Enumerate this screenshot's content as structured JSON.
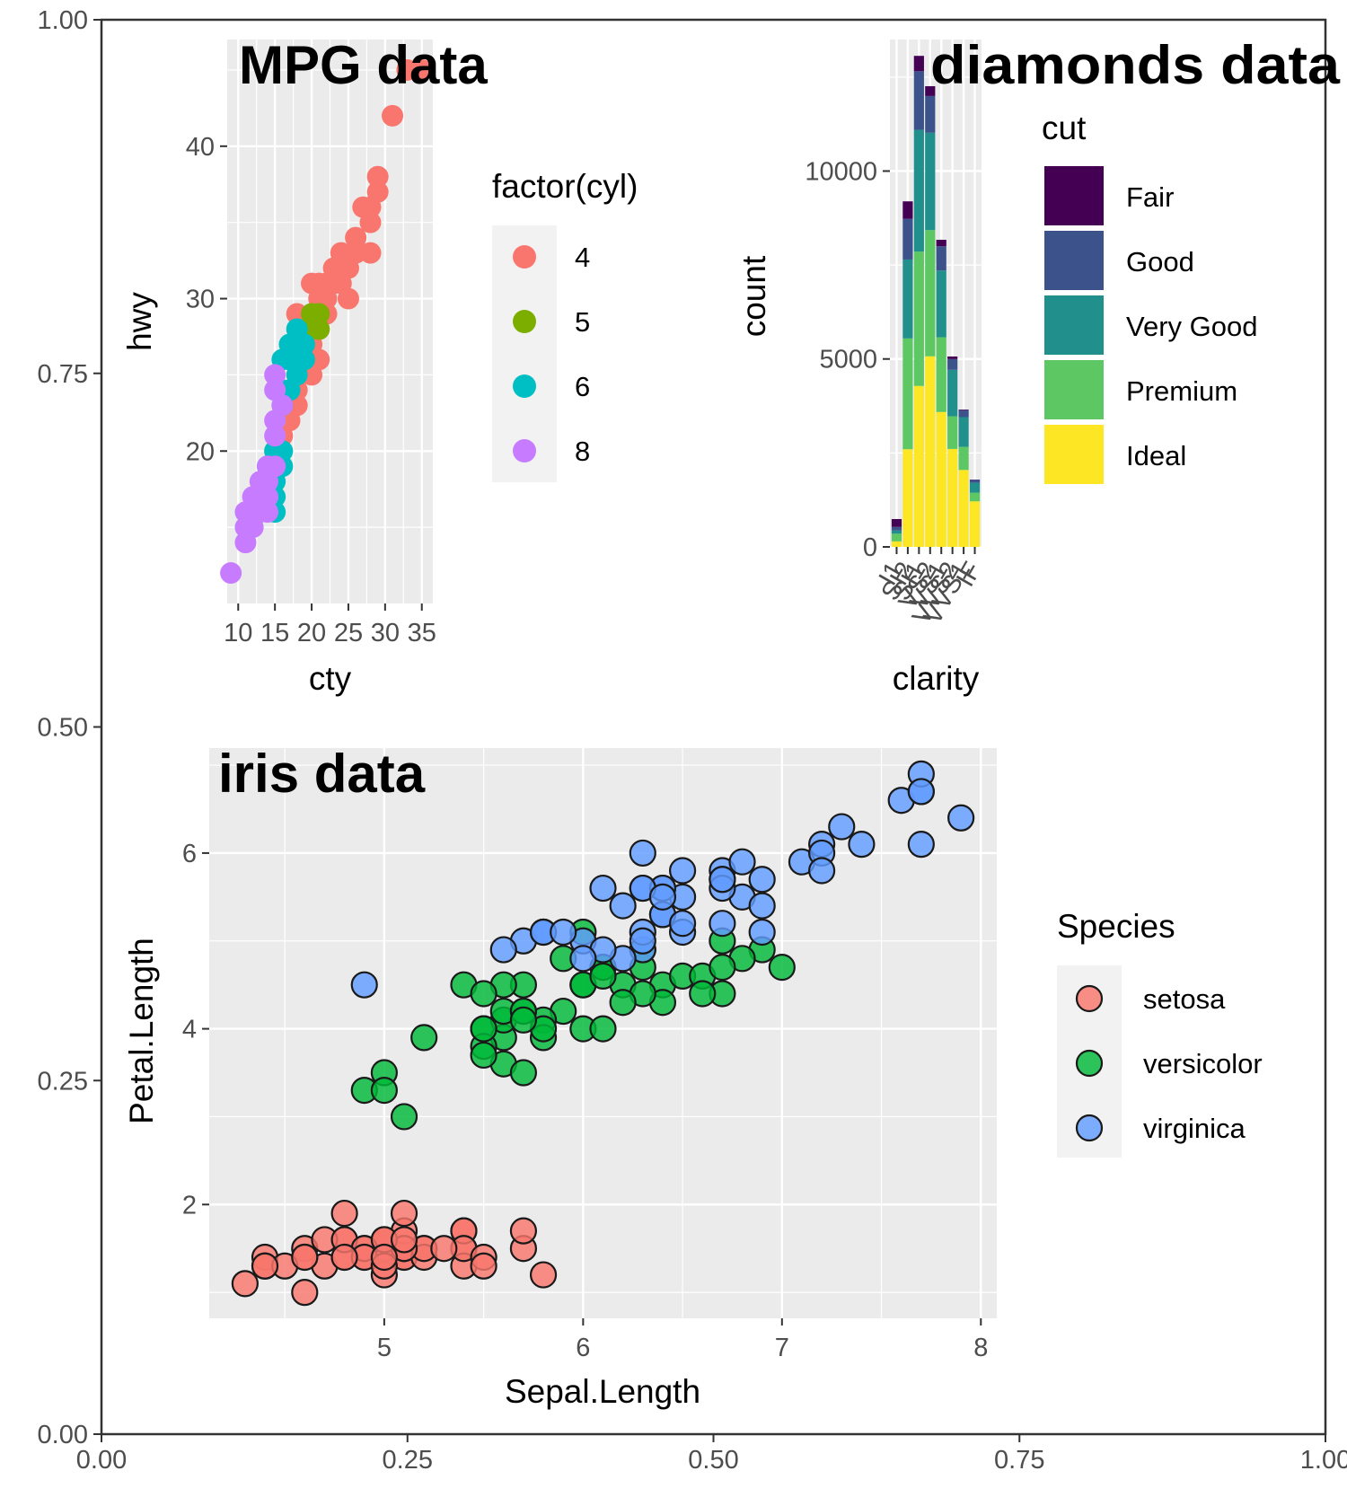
{
  "chart_data": [
    {
      "type": "canvas",
      "xlim": [
        0,
        1
      ],
      "ylim": [
        0,
        1
      ],
      "x_ticks": [
        "0.00",
        "0.25",
        "0.50",
        "0.75",
        "1.00"
      ],
      "y_ticks": [
        "0.00",
        "0.25",
        "0.50",
        "0.75",
        "1.00"
      ],
      "grid": false
    },
    {
      "type": "scatter",
      "title": "MPG data",
      "xlabel": "cty",
      "ylabel": "hwy",
      "xlim": [
        8.5,
        36.5
      ],
      "ylim": [
        10,
        47
      ],
      "x_ticks": [
        "10",
        "15",
        "20",
        "25",
        "30",
        "35"
      ],
      "y_ticks": [
        "20",
        "30",
        "40"
      ],
      "legend": {
        "title": "factor(cyl)",
        "position": "right"
      },
      "series": [
        {
          "name": "4",
          "color": "#F8766D",
          "points": [
            [
              18,
              29
            ],
            [
              21,
              29
            ],
            [
              20,
              31
            ],
            [
              21,
              30
            ],
            [
              18,
              26
            ],
            [
              18,
              26
            ],
            [
              19,
              27
            ],
            [
              22,
              29
            ],
            [
              21,
              31
            ],
            [
              19,
              28
            ],
            [
              20,
              28
            ],
            [
              21,
              29
            ],
            [
              22,
              30
            ],
            [
              23,
              31
            ],
            [
              24,
              32
            ],
            [
              26,
              34
            ],
            [
              27,
              36
            ],
            [
              28,
              36
            ],
            [
              29,
              37
            ],
            [
              28,
              35
            ],
            [
              26,
              33
            ],
            [
              25,
              32
            ],
            [
              24,
              33
            ],
            [
              23,
              32
            ],
            [
              22,
              31
            ],
            [
              25,
              30
            ],
            [
              24,
              31
            ],
            [
              22,
              29
            ],
            [
              21,
              28
            ],
            [
              20,
              27
            ],
            [
              19,
              26
            ],
            [
              21,
              26
            ],
            [
              20,
              25
            ],
            [
              18,
              24
            ],
            [
              18,
              23
            ],
            [
              17,
              23
            ],
            [
              17,
              22
            ],
            [
              16,
              21
            ],
            [
              15,
              20
            ],
            [
              16,
              22
            ],
            [
              28,
              33
            ],
            [
              29,
              38
            ],
            [
              31,
              42
            ],
            [
              33,
              45
            ],
            [
              35,
              45
            ]
          ]
        },
        {
          "name": "5",
          "color": "#7CAE00",
          "points": [
            [
              21,
              29
            ],
            [
              20,
              28
            ],
            [
              21,
              28
            ],
            [
              20,
              29
            ]
          ]
        },
        {
          "name": "6",
          "color": "#00BFC4",
          "points": [
            [
              15,
              20
            ],
            [
              14,
              19
            ],
            [
              15,
              18
            ],
            [
              16,
              19
            ],
            [
              16,
              20
            ],
            [
              17,
              24
            ],
            [
              18,
              25
            ],
            [
              19,
              27
            ],
            [
              18,
              26
            ],
            [
              19,
              26
            ],
            [
              16,
              23
            ],
            [
              16,
              24
            ],
            [
              15,
              16
            ],
            [
              15,
              17
            ],
            [
              16,
              26
            ],
            [
              17,
              27
            ],
            [
              17,
              26
            ],
            [
              18,
              28
            ]
          ]
        },
        {
          "name": "8",
          "color": "#C77CFF",
          "points": [
            [
              9,
              12
            ],
            [
              11,
              14
            ],
            [
              11,
              15
            ],
            [
              12,
              17
            ],
            [
              12,
              16
            ],
            [
              13,
              18
            ],
            [
              13,
              17
            ],
            [
              14,
              19
            ],
            [
              14,
              18
            ],
            [
              15,
              19
            ],
            [
              14,
              17
            ],
            [
              15,
              21
            ],
            [
              15,
              22
            ],
            [
              15,
              25
            ],
            [
              16,
              23
            ],
            [
              15,
              24
            ],
            [
              14,
              16
            ],
            [
              13,
              16
            ],
            [
              12,
              15
            ],
            [
              11,
              16
            ],
            [
              12,
              16
            ]
          ]
        }
      ]
    },
    {
      "type": "bar",
      "stacked": true,
      "title": "diamonds data",
      "xlabel": "clarity",
      "ylabel": "count",
      "ylim": [
        0,
        13500
      ],
      "y_ticks": [
        "0",
        "5000",
        "10000"
      ],
      "categories": [
        "I1",
        "SI2",
        "SI1",
        "VS2",
        "VS1",
        "VVS2",
        "VVS1",
        "IF"
      ],
      "legend": {
        "title": "cut",
        "position": "right"
      },
      "series": [
        {
          "name": "Fair",
          "color": "#440154",
          "values": [
            210,
            466,
            408,
            261,
            170,
            69,
            17,
            9
          ]
        },
        {
          "name": "Good",
          "color": "#3B528B",
          "values": [
            96,
            1081,
            1560,
            978,
            648,
            286,
            186,
            71
          ]
        },
        {
          "name": "Very Good",
          "color": "#21908C",
          "values": [
            84,
            2100,
            3240,
            2591,
            1775,
            1235,
            789,
            268
          ]
        },
        {
          "name": "Premium",
          "color": "#5DC863",
          "values": [
            205,
            2949,
            3575,
            3357,
            1989,
            870,
            616,
            230
          ]
        },
        {
          "name": "Ideal",
          "color": "#FDE725",
          "values": [
            146,
            2598,
            4282,
            5071,
            3589,
            2606,
            2047,
            1212
          ]
        }
      ]
    },
    {
      "type": "scatter",
      "title": "iris data",
      "xlabel": "Sepal.Length",
      "ylabel": "Petal.Length",
      "xlim": [
        4.12,
        8.08
      ],
      "ylim": [
        0.705,
        7.195
      ],
      "x_ticks": [
        "5",
        "6",
        "7",
        "8"
      ],
      "y_ticks": [
        "2",
        "4",
        "6"
      ],
      "legend": {
        "title": "Species",
        "position": "right"
      },
      "series": [
        {
          "name": "setosa",
          "color": "#F8766D",
          "points": [
            [
              5.1,
              1.4
            ],
            [
              4.9,
              1.4
            ],
            [
              4.7,
              1.3
            ],
            [
              4.6,
              1.5
            ],
            [
              5.0,
              1.4
            ],
            [
              5.4,
              1.7
            ],
            [
              4.6,
              1.4
            ],
            [
              5.0,
              1.5
            ],
            [
              4.4,
              1.4
            ],
            [
              4.9,
              1.5
            ],
            [
              5.4,
              1.5
            ],
            [
              4.8,
              1.6
            ],
            [
              4.8,
              1.4
            ],
            [
              4.3,
              1.1
            ],
            [
              5.8,
              1.2
            ],
            [
              5.7,
              1.5
            ],
            [
              5.4,
              1.3
            ],
            [
              5.1,
              1.4
            ],
            [
              5.7,
              1.7
            ],
            [
              5.1,
              1.5
            ],
            [
              5.4,
              1.7
            ],
            [
              5.1,
              1.5
            ],
            [
              4.6,
              1.0
            ],
            [
              5.1,
              1.7
            ],
            [
              4.8,
              1.9
            ],
            [
              5.0,
              1.6
            ],
            [
              5.0,
              1.6
            ],
            [
              5.2,
              1.5
            ],
            [
              5.2,
              1.4
            ],
            [
              4.7,
              1.6
            ],
            [
              4.8,
              1.6
            ],
            [
              5.4,
              1.5
            ],
            [
              5.2,
              1.5
            ],
            [
              5.5,
              1.4
            ],
            [
              4.9,
              1.5
            ],
            [
              5.0,
              1.2
            ],
            [
              5.5,
              1.3
            ],
            [
              4.9,
              1.4
            ],
            [
              4.4,
              1.3
            ],
            [
              5.1,
              1.5
            ],
            [
              5.0,
              1.3
            ],
            [
              4.5,
              1.3
            ],
            [
              4.4,
              1.3
            ],
            [
              5.0,
              1.6
            ],
            [
              5.1,
              1.9
            ],
            [
              4.8,
              1.4
            ],
            [
              5.1,
              1.6
            ],
            [
              4.6,
              1.4
            ],
            [
              5.3,
              1.5
            ],
            [
              5.0,
              1.4
            ]
          ]
        },
        {
          "name": "versicolor",
          "color": "#00BA38",
          "points": [
            [
              7.0,
              4.7
            ],
            [
              6.4,
              4.5
            ],
            [
              6.9,
              4.9
            ],
            [
              5.5,
              4.0
            ],
            [
              6.5,
              4.6
            ],
            [
              5.7,
              4.5
            ],
            [
              6.3,
              4.7
            ],
            [
              4.9,
              3.3
            ],
            [
              6.6,
              4.6
            ],
            [
              5.2,
              3.9
            ],
            [
              5.0,
              3.5
            ],
            [
              5.9,
              4.2
            ],
            [
              6.0,
              4.0
            ],
            [
              6.1,
              4.7
            ],
            [
              5.6,
              3.6
            ],
            [
              6.7,
              4.4
            ],
            [
              5.6,
              4.5
            ],
            [
              5.8,
              4.1
            ],
            [
              6.2,
              4.5
            ],
            [
              5.6,
              3.9
            ],
            [
              5.9,
              4.8
            ],
            [
              6.1,
              4.0
            ],
            [
              6.3,
              4.9
            ],
            [
              6.1,
              4.7
            ],
            [
              6.4,
              4.3
            ],
            [
              6.6,
              4.4
            ],
            [
              6.8,
              4.8
            ],
            [
              6.7,
              5.0
            ],
            [
              6.0,
              4.5
            ],
            [
              5.7,
              3.5
            ],
            [
              5.5,
              3.8
            ],
            [
              5.5,
              3.7
            ],
            [
              5.8,
              3.9
            ],
            [
              6.0,
              5.1
            ],
            [
              5.4,
              4.5
            ],
            [
              6.0,
              4.5
            ],
            [
              6.7,
              4.7
            ],
            [
              6.3,
              4.4
            ],
            [
              5.6,
              4.1
            ],
            [
              5.5,
              4.0
            ],
            [
              5.5,
              4.4
            ],
            [
              6.1,
              4.6
            ],
            [
              5.8,
              4.0
            ],
            [
              5.0,
              3.3
            ],
            [
              5.6,
              4.2
            ],
            [
              5.7,
              4.2
            ],
            [
              5.7,
              4.2
            ],
            [
              6.2,
              4.3
            ],
            [
              5.1,
              3.0
            ],
            [
              5.7,
              4.1
            ]
          ]
        },
        {
          "name": "virginica",
          "color": "#619CFF",
          "points": [
            [
              6.3,
              6.0
            ],
            [
              5.8,
              5.1
            ],
            [
              7.1,
              5.9
            ],
            [
              6.3,
              5.6
            ],
            [
              6.5,
              5.8
            ],
            [
              7.6,
              6.6
            ],
            [
              4.9,
              4.5
            ],
            [
              7.3,
              6.3
            ],
            [
              6.7,
              5.8
            ],
            [
              7.2,
              6.1
            ],
            [
              6.5,
              5.1
            ],
            [
              6.4,
              5.3
            ],
            [
              6.8,
              5.5
            ],
            [
              5.7,
              5.0
            ],
            [
              5.8,
              5.1
            ],
            [
              6.4,
              5.3
            ],
            [
              6.5,
              5.5
            ],
            [
              7.7,
              6.7
            ],
            [
              7.7,
              6.9
            ],
            [
              6.0,
              5.0
            ],
            [
              6.9,
              5.7
            ],
            [
              5.6,
              4.9
            ],
            [
              7.7,
              6.7
            ],
            [
              6.3,
              4.9
            ],
            [
              6.7,
              5.7
            ],
            [
              7.2,
              6.0
            ],
            [
              6.2,
              4.8
            ],
            [
              6.1,
              4.9
            ],
            [
              6.4,
              5.6
            ],
            [
              7.2,
              5.8
            ],
            [
              7.4,
              6.1
            ],
            [
              7.9,
              6.4
            ],
            [
              6.4,
              5.6
            ],
            [
              6.3,
              5.1
            ],
            [
              6.1,
              5.6
            ],
            [
              7.7,
              6.1
            ],
            [
              6.3,
              5.6
            ],
            [
              6.4,
              5.5
            ],
            [
              6.0,
              4.8
            ],
            [
              6.9,
              5.4
            ],
            [
              6.7,
              5.6
            ],
            [
              6.9,
              5.1
            ],
            [
              5.8,
              5.1
            ],
            [
              6.8,
              5.9
            ],
            [
              6.7,
              5.7
            ],
            [
              6.7,
              5.2
            ],
            [
              6.3,
              5.0
            ],
            [
              6.5,
              5.2
            ],
            [
              6.2,
              5.4
            ],
            [
              5.9,
              5.1
            ]
          ]
        }
      ]
    }
  ]
}
